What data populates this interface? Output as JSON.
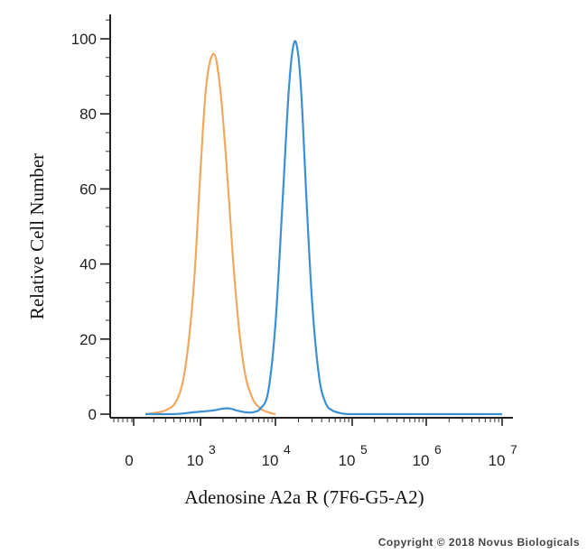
{
  "chart_data": {
    "type": "line",
    "xlabel": "Adenosine A2a R  (7F6-G5-A2)",
    "ylabel": "Relative Cell Number",
    "x_scale": "biexponential",
    "x_ticks": [
      {
        "value": 0,
        "base": "0",
        "exp": ""
      },
      {
        "value": 1000,
        "base": "10",
        "exp": "3"
      },
      {
        "value": 10000,
        "base": "10",
        "exp": "4"
      },
      {
        "value": 100000,
        "base": "10",
        "exp": "5"
      },
      {
        "value": 1000000,
        "base": "10",
        "exp": "6"
      },
      {
        "value": 10000000,
        "base": "10",
        "exp": "7"
      }
    ],
    "y_ticks": [
      0,
      20,
      40,
      60,
      80,
      100
    ],
    "ylim": [
      0,
      100
    ],
    "grid": false,
    "series": [
      {
        "color": "#f0a95c",
        "x": [
          150,
          300,
          450,
          600,
          800,
          1000,
          1200,
          1500,
          1800,
          2200,
          2700,
          3300,
          4000,
          5000,
          6300,
          8000,
          10000
        ],
        "y": [
          0,
          1,
          4,
          13,
          35,
          65,
          88,
          96,
          88,
          68,
          42,
          22,
          10,
          4,
          1.5,
          0.5,
          0
        ]
      },
      {
        "color": "#3b8fd4",
        "x": [
          150,
          400,
          800,
          1500,
          2000,
          2500,
          3000,
          4000,
          5000,
          6300,
          8000,
          10000,
          12500,
          15000,
          17500,
          20000,
          22500,
          25000,
          30000,
          37000,
          45000,
          55000,
          70000,
          90000,
          200000,
          10000000
        ],
        "y": [
          0,
          0,
          0.5,
          1,
          1.5,
          1.5,
          1,
          0.5,
          0.5,
          1.5,
          6,
          24,
          58,
          87,
          99,
          95,
          80,
          60,
          30,
          10,
          3,
          1,
          0.3,
          0,
          0,
          0
        ]
      }
    ]
  },
  "copyright": "Copyright © 2018 Novus Biologicals"
}
